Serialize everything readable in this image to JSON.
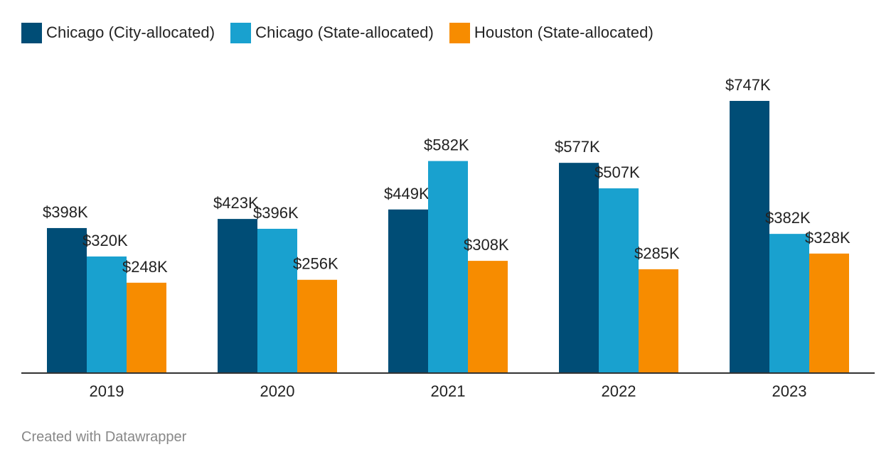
{
  "legend": {
    "items": [
      {
        "label": "Chicago (City-allocated)",
        "color": "#004d76"
      },
      {
        "label": "Chicago (State-allocated)",
        "color": "#19a1cf"
      },
      {
        "label": "Houston (State-allocated)",
        "color": "#f78c00"
      }
    ]
  },
  "chart_data": {
    "type": "bar",
    "categories": [
      "2019",
      "2020",
      "2021",
      "2022",
      "2023"
    ],
    "series": [
      {
        "name": "Chicago (City-allocated)",
        "color": "#004d76",
        "values": [
          398,
          423,
          449,
          577,
          747
        ],
        "labels": [
          "$398K",
          "$423K",
          "$449K",
          "$577K",
          "$747K"
        ]
      },
      {
        "name": "Chicago (State-allocated)",
        "color": "#19a1cf",
        "values": [
          320,
          396,
          582,
          507,
          382
        ],
        "labels": [
          "$320K",
          "$396K",
          "$582K",
          "$507K",
          "$382K"
        ]
      },
      {
        "name": "Houston (State-allocated)",
        "color": "#f78c00",
        "values": [
          248,
          256,
          308,
          285,
          328
        ],
        "labels": [
          "$248K",
          "$256K",
          "$308K",
          "$285K",
          "$328K"
        ]
      }
    ],
    "ylim": [
      0,
      747
    ],
    "grid": false,
    "legend_position": "top-left"
  },
  "footer": {
    "credit": "Created with Datawrapper"
  }
}
